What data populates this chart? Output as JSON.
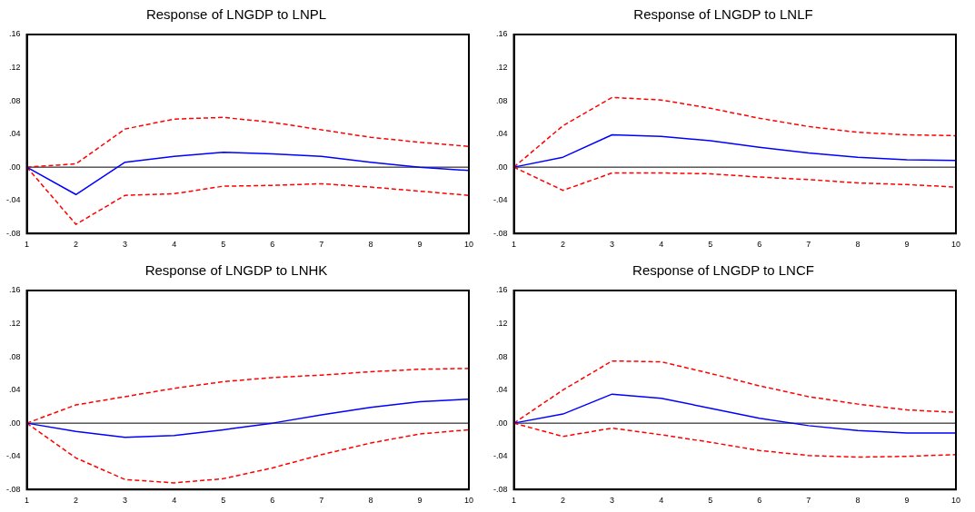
{
  "chart_data": [
    {
      "type": "line",
      "title": "Response of LNGDP to LNPL",
      "categories": [
        "1",
        "2",
        "3",
        "4",
        "5",
        "6",
        "7",
        "8",
        "9",
        "10"
      ],
      "ylim": [
        -0.08,
        0.16
      ],
      "yticks": [
        {
          "value": -0.08,
          "label": "-.08"
        },
        {
          "value": -0.04,
          "label": "-.04"
        },
        {
          "value": 0,
          "label": ".00"
        },
        {
          "value": 0.04,
          "label": ".04"
        },
        {
          "value": 0.08,
          "label": ".08"
        },
        {
          "value": 0.12,
          "label": ".12"
        },
        {
          "value": 0.16,
          "label": ".16"
        }
      ],
      "ref_lines": [
        {
          "axis": "y",
          "value": 0,
          "color": "#000000"
        }
      ],
      "series": [
        {
          "color": "#0000ff",
          "line_style": "solid",
          "values": [
            0,
            -0.033,
            0.006,
            0.013,
            0.018,
            0.016,
            0.013,
            0.006,
            0.0,
            -0.004
          ]
        },
        {
          "color": "#ff0000",
          "line_style": "dashed",
          "values": [
            0,
            0.004,
            0.046,
            0.058,
            0.06,
            0.054,
            0.045,
            0.036,
            0.03,
            0.025
          ]
        },
        {
          "color": "#ff0000",
          "line_style": "dashed",
          "values": [
            0,
            -0.069,
            -0.034,
            -0.032,
            -0.023,
            -0.022,
            -0.02,
            -0.024,
            -0.029,
            -0.034
          ]
        }
      ]
    },
    {
      "type": "line",
      "title": "Response of LNGDP to LNLF",
      "categories": [
        "1",
        "2",
        "3",
        "4",
        "5",
        "6",
        "7",
        "8",
        "9",
        "10"
      ],
      "ylim": [
        -0.08,
        0.16
      ],
      "yticks": [
        {
          "value": -0.08,
          "label": "-.08"
        },
        {
          "value": -0.04,
          "label": "-.04"
        },
        {
          "value": 0,
          "label": ".00"
        },
        {
          "value": 0.04,
          "label": ".04"
        },
        {
          "value": 0.08,
          "label": ".08"
        },
        {
          "value": 0.12,
          "label": ".12"
        },
        {
          "value": 0.16,
          "label": ".16"
        }
      ],
      "ref_lines": [
        {
          "axis": "y",
          "value": 0,
          "color": "#000000"
        }
      ],
      "series": [
        {
          "color": "#0000ff",
          "line_style": "solid",
          "values": [
            0,
            0.012,
            0.039,
            0.037,
            0.032,
            0.024,
            0.017,
            0.012,
            0.009,
            0.008
          ]
        },
        {
          "color": "#ff0000",
          "line_style": "dashed",
          "values": [
            0,
            0.05,
            0.084,
            0.081,
            0.071,
            0.059,
            0.049,
            0.042,
            0.039,
            0.038
          ]
        },
        {
          "color": "#ff0000",
          "line_style": "dashed",
          "values": [
            0,
            -0.028,
            -0.007,
            -0.007,
            -0.008,
            -0.012,
            -0.015,
            -0.019,
            -0.021,
            -0.024
          ]
        }
      ]
    },
    {
      "type": "line",
      "title": "Response of LNGDP to LNHK",
      "categories": [
        "1",
        "2",
        "3",
        "4",
        "5",
        "6",
        "7",
        "8",
        "9",
        "10"
      ],
      "ylim": [
        -0.08,
        0.16
      ],
      "yticks": [
        {
          "value": -0.08,
          "label": "-.08"
        },
        {
          "value": -0.04,
          "label": "-.04"
        },
        {
          "value": 0,
          "label": ".00"
        },
        {
          "value": 0.04,
          "label": ".04"
        },
        {
          "value": 0.08,
          "label": ".08"
        },
        {
          "value": 0.12,
          "label": ".12"
        },
        {
          "value": 0.16,
          "label": ".16"
        }
      ],
      "ref_lines": [
        {
          "axis": "y",
          "value": 0,
          "color": "#000000"
        }
      ],
      "series": [
        {
          "color": "#0000ff",
          "line_style": "solid",
          "values": [
            0,
            -0.01,
            -0.017,
            -0.015,
            -0.008,
            0.0,
            0.01,
            0.019,
            0.026,
            0.029
          ]
        },
        {
          "color": "#ff0000",
          "line_style": "dashed",
          "values": [
            0,
            0.022,
            0.032,
            0.042,
            0.05,
            0.055,
            0.058,
            0.062,
            0.065,
            0.066
          ]
        },
        {
          "color": "#ff0000",
          "line_style": "dashed",
          "values": [
            0,
            -0.042,
            -0.068,
            -0.072,
            -0.067,
            -0.054,
            -0.038,
            -0.024,
            -0.013,
            -0.008
          ]
        }
      ]
    },
    {
      "type": "line",
      "title": "Response of LNGDP to LNCF",
      "categories": [
        "1",
        "2",
        "3",
        "4",
        "5",
        "6",
        "7",
        "8",
        "9",
        "10"
      ],
      "ylim": [
        -0.08,
        0.16
      ],
      "yticks": [
        {
          "value": -0.08,
          "label": "-.08"
        },
        {
          "value": -0.04,
          "label": "-.04"
        },
        {
          "value": 0,
          "label": ".00"
        },
        {
          "value": 0.04,
          "label": ".04"
        },
        {
          "value": 0.08,
          "label": ".08"
        },
        {
          "value": 0.12,
          "label": ".12"
        },
        {
          "value": 0.16,
          "label": ".16"
        }
      ],
      "ref_lines": [
        {
          "axis": "y",
          "value": 0,
          "color": "#000000"
        }
      ],
      "series": [
        {
          "color": "#0000ff",
          "line_style": "solid",
          "values": [
            0,
            0.011,
            0.035,
            0.03,
            0.018,
            0.006,
            -0.003,
            -0.009,
            -0.012,
            -0.012
          ]
        },
        {
          "color": "#ff0000",
          "line_style": "dashed",
          "values": [
            0,
            0.04,
            0.075,
            0.074,
            0.06,
            0.045,
            0.032,
            0.023,
            0.016,
            0.013
          ]
        },
        {
          "color": "#ff0000",
          "line_style": "dashed",
          "values": [
            0,
            -0.016,
            -0.006,
            -0.014,
            -0.023,
            -0.033,
            -0.039,
            -0.041,
            -0.04,
            -0.038
          ]
        }
      ]
    }
  ]
}
